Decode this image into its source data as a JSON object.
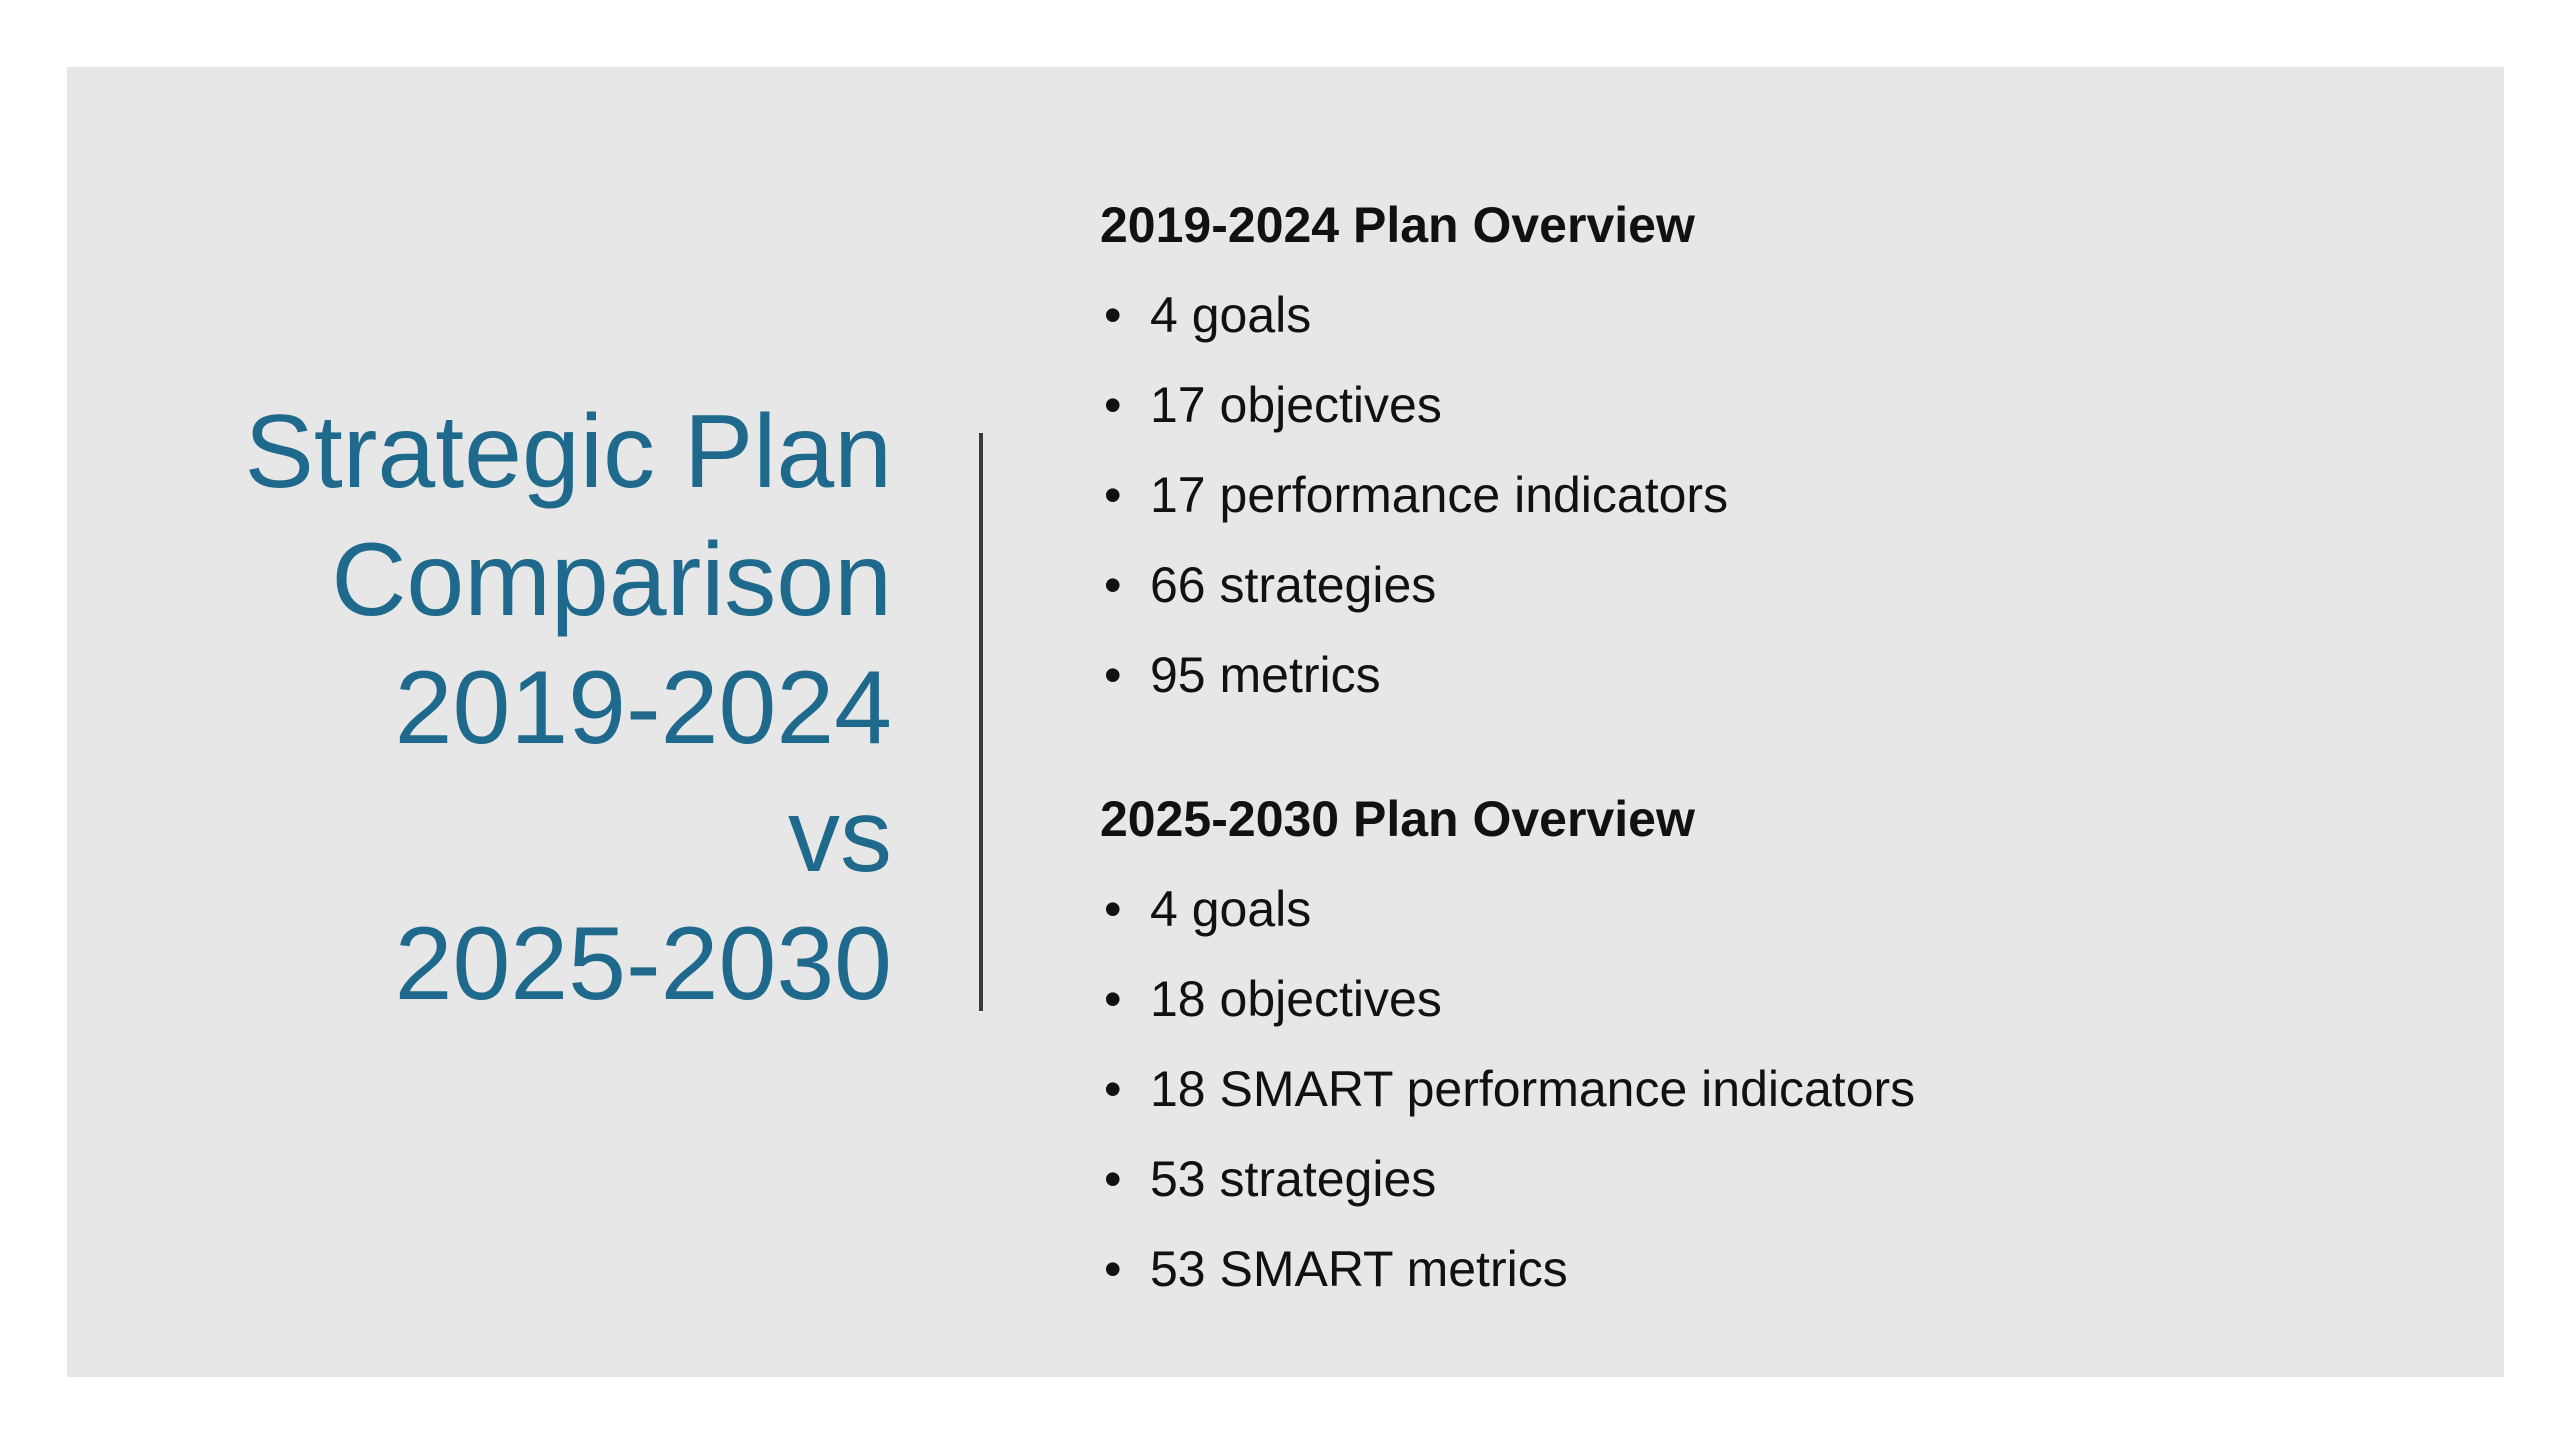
{
  "title": {
    "lines": [
      "Strategic Plan",
      "Comparison",
      "2019-2024",
      "vs",
      "2025-2030"
    ],
    "color": "#1f6a8c"
  },
  "plans": [
    {
      "heading": "2019-2024 Plan Overview",
      "items": [
        "4 goals",
        "17 objectives",
        "17 performance indicators",
        "66 strategies",
        "95 metrics"
      ]
    },
    {
      "heading": "2025-2030 Plan Overview",
      "items": [
        "4 goals",
        "18 objectives",
        "18 SMART performance indicators",
        "53 strategies",
        "53 SMART metrics"
      ]
    }
  ],
  "bullet_symbol": "•",
  "colors": {
    "slide_background": "#e7e7e7",
    "text": "#111111",
    "divider": "#3a3a3a"
  }
}
